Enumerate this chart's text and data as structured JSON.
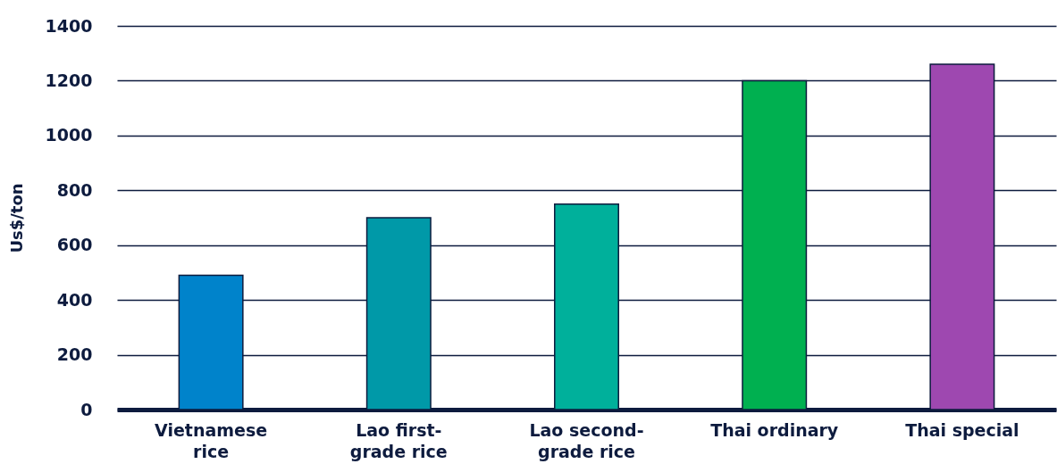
{
  "chart_data": {
    "type": "bar",
    "ylabel": "Us$/ton",
    "categories": [
      "Vietnamese rice",
      "Lao first-grade rice",
      "Lao second-grade rice",
      "Thai ordinary",
      "Thai special"
    ],
    "values": [
      490,
      700,
      750,
      1200,
      1260
    ],
    "colors": [
      "#0083cb",
      "#0099a8",
      "#00b09b",
      "#00b050",
      "#9e48b0"
    ],
    "ylim": [
      0,
      1400
    ],
    "yticks": [
      0,
      200,
      400,
      600,
      800,
      1000,
      1200,
      1400
    ],
    "grid": "y"
  }
}
